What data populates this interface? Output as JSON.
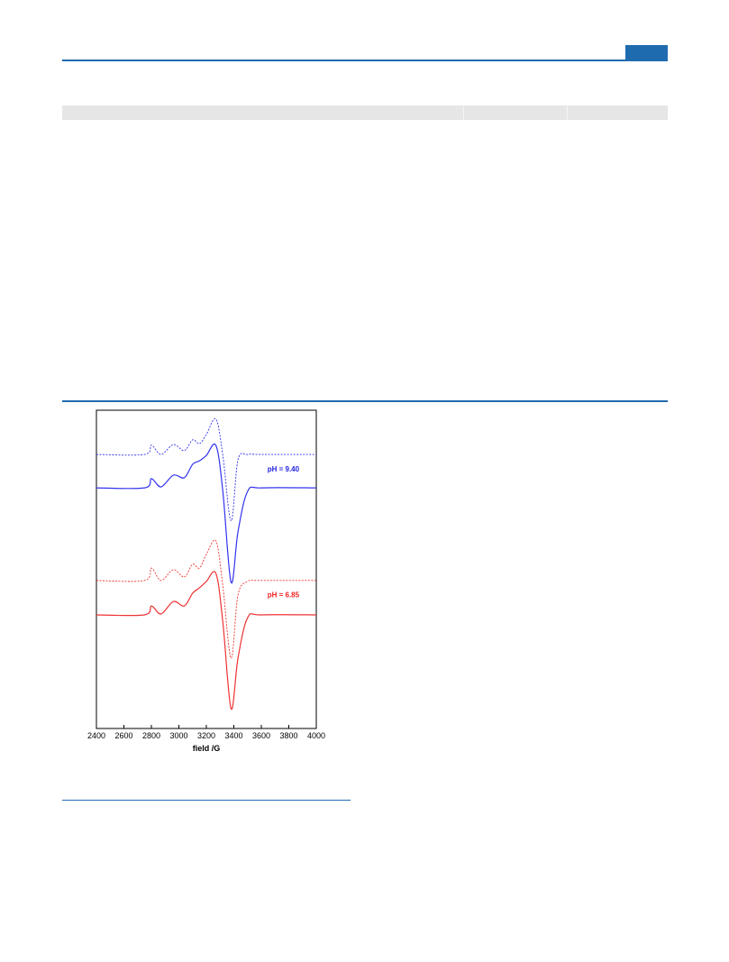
{
  "chart_data": {
    "type": "line",
    "xlabel": "field /G",
    "xlim": [
      2400,
      4000
    ],
    "xticks": [
      2400,
      2600,
      2800,
      3000,
      3200,
      3400,
      3600,
      3800,
      4000
    ],
    "ylim": [
      0,
      100
    ],
    "x": [
      2400,
      2750,
      2800,
      2870,
      2960,
      3040,
      3100,
      3150,
      3200,
      3270,
      3320,
      3380,
      3430,
      3500,
      3600,
      4000
    ],
    "series": [
      {
        "color": "#3333ee",
        "dashed": true,
        "values": [
          86.1,
          86.1,
          89.0,
          86.1,
          89.2,
          87.3,
          90.7,
          89.5,
          92.4,
          97.2,
          85.8,
          65.2,
          84.4,
          86.1,
          86.1,
          86.1
        ]
      },
      {
        "color": "#3333ee",
        "dashed": false,
        "values": [
          75.6,
          75.6,
          78.5,
          75.9,
          79.6,
          78.8,
          83.0,
          84.1,
          85.8,
          88.9,
          74.5,
          45.9,
          61.8,
          74.5,
          75.6,
          75.6
        ]
      },
      {
        "color": "#ee3333",
        "dashed": true,
        "values": [
          46.5,
          46.5,
          50.4,
          46.5,
          49.9,
          47.6,
          51.6,
          50.4,
          54.7,
          58.9,
          44.8,
          22.1,
          41.9,
          46.2,
          46.5,
          46.5
        ]
      },
      {
        "color": "#ee3333",
        "dashed": false,
        "values": [
          35.7,
          35.7,
          38.5,
          36.0,
          39.9,
          38.5,
          42.5,
          44.2,
          46.2,
          48.7,
          33.4,
          6.2,
          22.1,
          34.8,
          35.7,
          35.7
        ]
      }
    ],
    "annotations": [
      {
        "text": "pH = 9.40",
        "x": 3760,
        "y": 80.8,
        "color": "#2222dd"
      },
      {
        "text": "pH = 6.85",
        "x": 3760,
        "y": 41.2,
        "color": "#ee2222"
      }
    ]
  }
}
